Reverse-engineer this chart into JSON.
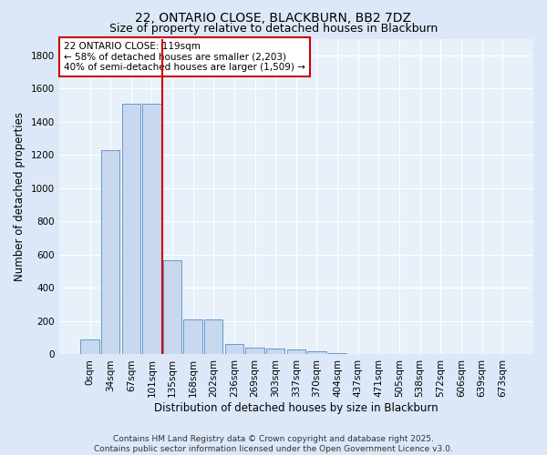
{
  "title": "22, ONTARIO CLOSE, BLACKBURN, BB2 7DZ",
  "subtitle": "Size of property relative to detached houses in Blackburn",
  "xlabel": "Distribution of detached houses by size in Blackburn",
  "ylabel": "Number of detached properties",
  "bar_color": "#c8d8ee",
  "bar_edge_color": "#6699cc",
  "background_color": "#e8f0fa",
  "grid_color": "#ffffff",
  "categories": [
    "0sqm",
    "34sqm",
    "67sqm",
    "101sqm",
    "135sqm",
    "168sqm",
    "202sqm",
    "236sqm",
    "269sqm",
    "303sqm",
    "337sqm",
    "370sqm",
    "404sqm",
    "437sqm",
    "471sqm",
    "505sqm",
    "538sqm",
    "572sqm",
    "606sqm",
    "639sqm",
    "673sqm"
  ],
  "values": [
    90,
    1230,
    1510,
    1510,
    565,
    210,
    210,
    65,
    42,
    35,
    28,
    20,
    8,
    2,
    0,
    0,
    0,
    0,
    0,
    0,
    0
  ],
  "ylim": [
    0,
    1900
  ],
  "yticks": [
    0,
    200,
    400,
    600,
    800,
    1000,
    1200,
    1400,
    1600,
    1800
  ],
  "red_line_x": 3.5,
  "annotation_line1": "22 ONTARIO CLOSE: 119sqm",
  "annotation_line2": "← 58% of detached houses are smaller (2,203)",
  "annotation_line3": "40% of semi-detached houses are larger (1,509) →",
  "annotation_box_color": "#ffffff",
  "annotation_box_edge_color": "#cc0000",
  "red_line_color": "#cc0000",
  "footer_line1": "Contains HM Land Registry data © Crown copyright and database right 2025.",
  "footer_line2": "Contains public sector information licensed under the Open Government Licence v3.0.",
  "title_fontsize": 10,
  "subtitle_fontsize": 9,
  "axis_label_fontsize": 8.5,
  "tick_fontsize": 7.5,
  "annotation_fontsize": 7.5,
  "footer_fontsize": 6.5
}
